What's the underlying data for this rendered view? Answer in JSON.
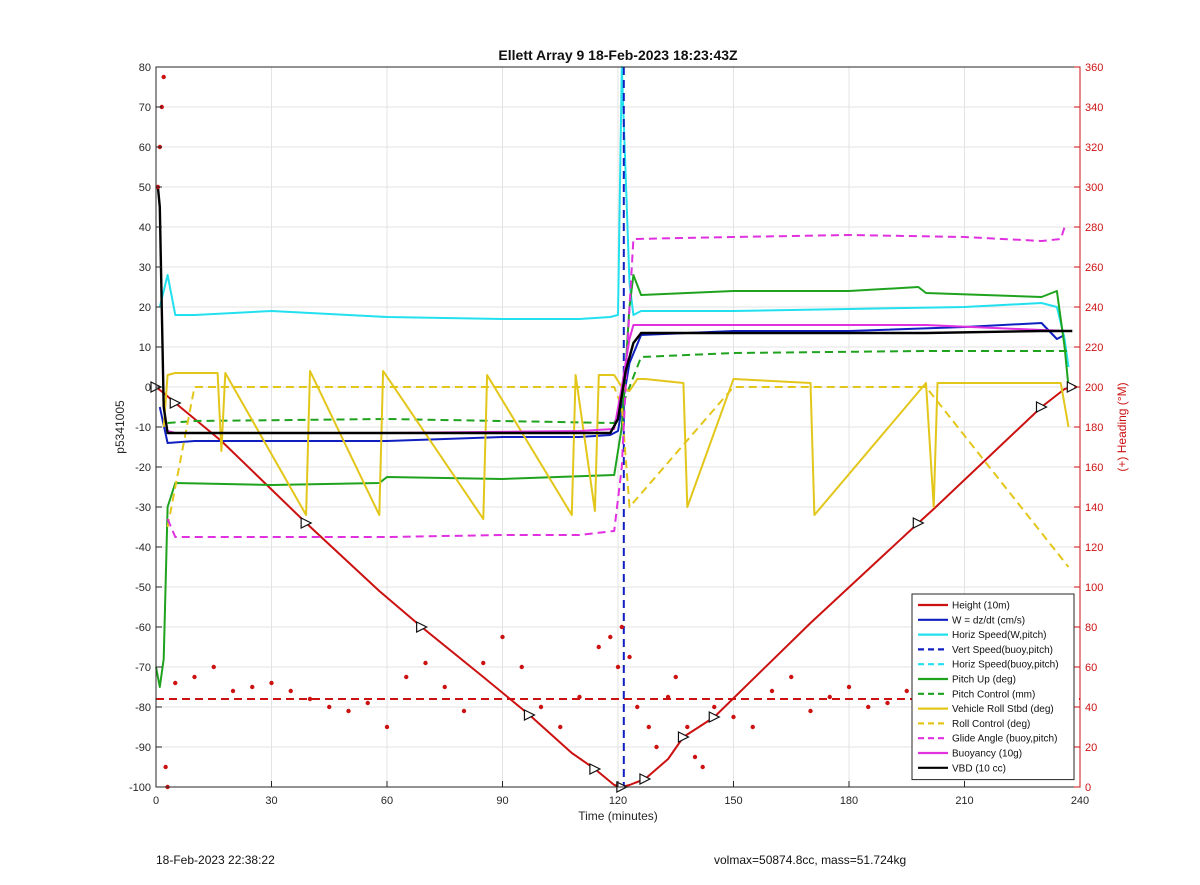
{
  "chart_data": {
    "type": "line",
    "title": "Ellett Array 9 18-Feb-2023 18:23:43Z",
    "xlabel": "Time (minutes)",
    "ylabel_left": "p5341005",
    "ylabel_right": "(+) Heading (°M)",
    "xlim": [
      0,
      240
    ],
    "ylim_left": [
      -100,
      80
    ],
    "ylim_right": [
      0,
      360
    ],
    "x_ticks": [
      0,
      30,
      60,
      90,
      120,
      150,
      180,
      210,
      240
    ],
    "y_ticks_left": [
      80,
      70,
      60,
      50,
      40,
      30,
      20,
      10,
      0,
      -10,
      -20,
      -30,
      -40,
      -50,
      -60,
      -70,
      -80,
      -90,
      -100
    ],
    "y_ticks_right": [
      360,
      340,
      320,
      300,
      280,
      260,
      240,
      220,
      200,
      180,
      160,
      140,
      120,
      100,
      80,
      60,
      40,
      20,
      0
    ],
    "grid": true,
    "legend_position": "bottom-right",
    "legend": [
      {
        "label": "Height (10m)",
        "color": "#cc1111",
        "style": "solid"
      },
      {
        "label": "W = dz/dt (cm/s)",
        "color": "#1020c0",
        "style": "solid"
      },
      {
        "label": "Horiz Speed(W,pitch)",
        "color": "#22e0ee",
        "style": "solid"
      },
      {
        "label": "Vert Speed(buoy,pitch)",
        "color": "#1020c0",
        "style": "dashed"
      },
      {
        "label": "Horiz Speed(buoy,pitch)",
        "color": "#22e0ee",
        "style": "dashed"
      },
      {
        "label": "Pitch Up (deg)",
        "color": "#1fa31f",
        "style": "solid"
      },
      {
        "label": "Pitch Control (mm)",
        "color": "#1fa31f",
        "style": "dashed"
      },
      {
        "label": "Vehicle Roll Stbd (deg)",
        "color": "#e3c61a",
        "style": "solid"
      },
      {
        "label": "Roll Control (deg)",
        "color": "#e3c61a",
        "style": "dashed"
      },
      {
        "label": "Glide Angle (buoy,pitch)",
        "color": "#e030e0",
        "style": "dashed"
      },
      {
        "label": "Buoyancy (10g)",
        "color": "#e030e0",
        "style": "solid"
      },
      {
        "label": "VBD (10 cc)",
        "color": "#000000",
        "style": "solid"
      }
    ],
    "series": [
      {
        "name": "Height (10m)",
        "axis": "left",
        "color": "#cc1111",
        "style": "solid",
        "x": [
          0,
          2,
          5,
          17,
          39,
          58,
          69,
          85,
          97,
          108,
          114,
          119,
          121,
          123,
          127,
          133,
          137,
          141,
          145,
          170,
          198,
          202,
          230,
          236,
          238
        ],
        "y": [
          0,
          -1.5,
          -4,
          -13.5,
          -34,
          -51,
          -60,
          -72.5,
          -82,
          -91.5,
          -95.5,
          -99.5,
          -100,
          -99.5,
          -98,
          -93,
          -87.5,
          -85,
          -82.5,
          -59,
          -34,
          -30.5,
          -5,
          -0.5,
          0
        ]
      },
      {
        "name": "W = dz/dt (cm/s)",
        "axis": "left",
        "color": "#1020c0",
        "style": "solid",
        "x": [
          1,
          3,
          10,
          30,
          60,
          90,
          110,
          118,
          120,
          123,
          126,
          150,
          180,
          210,
          230,
          234,
          236
        ],
        "y": [
          -5,
          -14,
          -13.5,
          -13.5,
          -13.5,
          -12.5,
          -12.5,
          -12,
          -11,
          6,
          13,
          14,
          14,
          15,
          16,
          12,
          13
        ]
      },
      {
        "name": "Horiz Speed(W,pitch)",
        "axis": "left",
        "color": "#22e0ee",
        "style": "solid",
        "x": [
          1,
          3,
          5,
          10,
          30,
          60,
          90,
          110,
          118,
          120,
          121,
          123,
          124,
          126,
          150,
          180,
          210,
          230,
          234,
          236,
          237
        ],
        "y": [
          20,
          28,
          18,
          18,
          19,
          17.5,
          17,
          17,
          17.5,
          18,
          80,
          26,
          18,
          19,
          19,
          19.5,
          20,
          21,
          20,
          12,
          5
        ]
      },
      {
        "name": "Vert Speed(buoy,pitch)",
        "axis": "left",
        "color": "#1020c0",
        "style": "dashed",
        "x": [
          121.5,
          121.5
        ],
        "y": [
          80,
          -100
        ]
      },
      {
        "name": "Pitch Up (deg)",
        "axis": "left",
        "color": "#1fa31f",
        "style": "solid",
        "x": [
          0,
          1,
          2,
          3,
          5,
          30,
          58,
          60,
          90,
          119,
          121,
          123,
          124,
          126,
          150,
          180,
          198,
          200,
          230,
          234,
          236,
          237
        ],
        "y": [
          -70,
          -75,
          -68,
          -30,
          -24,
          -24.5,
          -24,
          -22.5,
          -23,
          -22,
          -10,
          20,
          28,
          23,
          24,
          24,
          25,
          23.5,
          22.5,
          24,
          10,
          0
        ]
      },
      {
        "name": "Pitch Control (mm)",
        "axis": "left",
        "color": "#1fa31f",
        "style": "dashed",
        "x": [
          3,
          10,
          60,
          119,
          121,
          126,
          150,
          200,
          237
        ],
        "y": [
          -9,
          -8.5,
          -8,
          -9,
          -5,
          7.5,
          8.5,
          9,
          9
        ]
      },
      {
        "name": "Vehicle Roll Stbd (deg)",
        "axis": "left",
        "color": "#e3c61a",
        "style": "solid",
        "x": [
          2,
          3,
          5,
          16,
          17,
          18,
          39,
          40,
          58,
          59,
          85,
          86,
          108,
          109,
          114,
          115,
          119,
          121,
          123,
          125,
          127,
          137,
          138,
          150,
          170,
          171,
          200,
          202,
          203,
          235,
          237
        ],
        "y": [
          -10,
          3,
          3.5,
          3.5,
          -16,
          3.5,
          -32,
          4,
          -32,
          4,
          -33,
          3,
          -32,
          3,
          -31,
          3,
          3,
          0,
          -1,
          2,
          2,
          1,
          -30,
          2,
          1,
          -32,
          1,
          -30,
          1,
          1,
          -10
        ]
      },
      {
        "name": "Roll Control (deg)",
        "axis": "left",
        "color": "#e3c61a",
        "style": "dashed",
        "x": [
          3,
          10,
          60,
          119,
          121,
          123,
          150,
          200,
          237
        ],
        "y": [
          -35,
          0,
          0,
          0,
          -5,
          -30,
          0,
          0,
          -45
        ]
      },
      {
        "name": "Glide Angle (buoy,pitch)",
        "axis": "left",
        "color": "#e030e0",
        "style": "dashed",
        "x": [
          3,
          5,
          30,
          60,
          90,
          110,
          119,
          121,
          123,
          124,
          150,
          180,
          210,
          230,
          235,
          236
        ],
        "y": [
          -33,
          -37.5,
          -37.5,
          -37.5,
          -37,
          -37,
          -36,
          -20,
          20,
          37,
          37.5,
          38,
          37.5,
          36.5,
          37,
          40
        ]
      },
      {
        "name": "Buoyancy (10g)",
        "axis": "left",
        "color": "#e030e0",
        "style": "solid",
        "x": [
          3,
          5,
          60,
          110,
          119,
          121,
          123,
          124,
          150,
          200,
          236
        ],
        "y": [
          -11,
          -11.5,
          -11.5,
          -11,
          -10.5,
          0,
          12,
          15.5,
          15.5,
          15.5,
          14
        ]
      },
      {
        "name": "VBD (10 cc)",
        "axis": "left",
        "color": "#000000",
        "style": "solid",
        "x": [
          0.5,
          1,
          2,
          3,
          5,
          30,
          60,
          90,
          118,
          120,
          122,
          124,
          126,
          150,
          200,
          230,
          238
        ],
        "y": [
          50,
          45,
          -5,
          -11.5,
          -11.5,
          -11.5,
          -11.5,
          -11.5,
          -11.5,
          -8,
          4,
          11,
          13.5,
          13.5,
          13.5,
          14,
          14
        ]
      },
      {
        "name": "Heading",
        "axis": "right",
        "color": "#cc1111",
        "style": "dots",
        "x": [
          0.5,
          1,
          1.5,
          2,
          2.5,
          3,
          5,
          10,
          15,
          20,
          25,
          30,
          35,
          40,
          45,
          50,
          55,
          60,
          65,
          70,
          75,
          80,
          85,
          90,
          95,
          100,
          105,
          110,
          115,
          118,
          120,
          121,
          123,
          125,
          128,
          130,
          133,
          135,
          138,
          140,
          142,
          145,
          150,
          155,
          160,
          165,
          170,
          175,
          180,
          185,
          190,
          195,
          200,
          205,
          210,
          215,
          220,
          225,
          230,
          235,
          237
        ],
        "y": [
          300,
          320,
          340,
          355,
          10,
          0,
          52,
          55,
          60,
          48,
          50,
          52,
          48,
          44,
          40,
          38,
          42,
          30,
          55,
          62,
          50,
          38,
          62,
          75,
          60,
          40,
          30,
          45,
          70,
          75,
          60,
          80,
          65,
          40,
          30,
          20,
          45,
          55,
          30,
          15,
          10,
          40,
          35,
          30,
          48,
          55,
          38,
          45,
          50,
          40,
          42,
          48,
          45,
          38,
          40,
          48,
          52,
          55,
          45,
          60,
          65
        ]
      },
      {
        "name": "Heading reference",
        "axis": "right",
        "color": "#cc1111",
        "style": "dashed",
        "x": [
          0,
          240
        ],
        "y": [
          44,
          44
        ]
      }
    ]
  },
  "footer": {
    "left": "18-Feb-2023 22:38:22",
    "right": "volmax=50874.8cc, mass=51.724kg"
  }
}
